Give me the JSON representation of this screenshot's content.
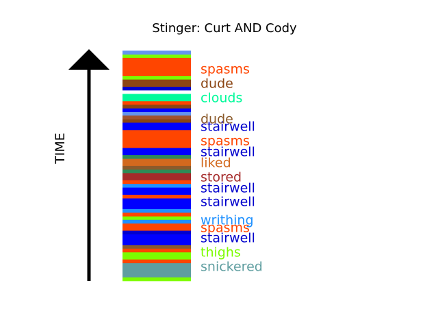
{
  "chart_data": {
    "type": "bar",
    "title": "Stinger: Curt AND Cody",
    "axis_label": "TIME",
    "words": [
      {
        "text": "spasms",
        "color": "#ff4500",
        "y": 0.918
      },
      {
        "text": "dude",
        "color": "#8b4513",
        "y": 0.855
      },
      {
        "text": "clouds",
        "color": "#00fa9a",
        "y": 0.793
      },
      {
        "text": "dude",
        "color": "#8b5a2b",
        "y": 0.699
      },
      {
        "text": "stairwell",
        "color": "#0000cd",
        "y": 0.668
      },
      {
        "text": "spasms",
        "color": "#ff4500",
        "y": 0.605
      },
      {
        "text": "stairwell",
        "color": "#0000cd",
        "y": 0.559
      },
      {
        "text": "liked",
        "color": "#d2691e",
        "y": 0.512
      },
      {
        "text": "stored",
        "color": "#a52a2a",
        "y": 0.449
      },
      {
        "text": "stairwell",
        "color": "#0000cd",
        "y": 0.402
      },
      {
        "text": "stairwell",
        "color": "#0000cd",
        "y": 0.34
      },
      {
        "text": "writhing",
        "color": "#1e90ff",
        "y": 0.262
      },
      {
        "text": "spasms",
        "color": "#ff4500",
        "y": 0.23
      },
      {
        "text": "stairwell",
        "color": "#0000cd",
        "y": 0.184
      },
      {
        "text": "thighs",
        "color": "#7cfc00",
        "y": 0.121
      },
      {
        "text": "snickered",
        "color": "#5f9ea0",
        "y": 0.059
      }
    ],
    "stripes": [
      {
        "start": 0.0,
        "end": 0.016,
        "color": "#7cfc00"
      },
      {
        "start": 0.016,
        "end": 0.078,
        "color": "#5f9ea0"
      },
      {
        "start": 0.078,
        "end": 0.094,
        "color": "#ff4500"
      },
      {
        "start": 0.094,
        "end": 0.125,
        "color": "#7cfc00"
      },
      {
        "start": 0.125,
        "end": 0.141,
        "color": "#ff4500"
      },
      {
        "start": 0.141,
        "end": 0.156,
        "color": "#8b5a2b"
      },
      {
        "start": 0.156,
        "end": 0.203,
        "color": "#0000ff"
      },
      {
        "start": 0.203,
        "end": 0.219,
        "color": "#0000cd"
      },
      {
        "start": 0.219,
        "end": 0.25,
        "color": "#ff4500"
      },
      {
        "start": 0.25,
        "end": 0.266,
        "color": "#1e90ff"
      },
      {
        "start": 0.266,
        "end": 0.281,
        "color": "#7cfc00"
      },
      {
        "start": 0.281,
        "end": 0.297,
        "color": "#ff4500"
      },
      {
        "start": 0.297,
        "end": 0.313,
        "color": "#1e90ff"
      },
      {
        "start": 0.313,
        "end": 0.359,
        "color": "#0000ff"
      },
      {
        "start": 0.359,
        "end": 0.375,
        "color": "#ff4500"
      },
      {
        "start": 0.375,
        "end": 0.406,
        "color": "#0000ff"
      },
      {
        "start": 0.406,
        "end": 0.422,
        "color": "#1e90ff"
      },
      {
        "start": 0.422,
        "end": 0.438,
        "color": "#ff4500"
      },
      {
        "start": 0.438,
        "end": 0.469,
        "color": "#a52a2a"
      },
      {
        "start": 0.469,
        "end": 0.484,
        "color": "#2e8b57"
      },
      {
        "start": 0.484,
        "end": 0.5,
        "color": "#8b5a2b"
      },
      {
        "start": 0.5,
        "end": 0.531,
        "color": "#d2691e"
      },
      {
        "start": 0.531,
        "end": 0.547,
        "color": "#2e8b57"
      },
      {
        "start": 0.547,
        "end": 0.578,
        "color": "#0000ff"
      },
      {
        "start": 0.578,
        "end": 0.656,
        "color": "#ff4500"
      },
      {
        "start": 0.656,
        "end": 0.688,
        "color": "#0000ff"
      },
      {
        "start": 0.688,
        "end": 0.703,
        "color": "#8b4513"
      },
      {
        "start": 0.703,
        "end": 0.719,
        "color": "#a0522d"
      },
      {
        "start": 0.719,
        "end": 0.734,
        "color": "#6495ed"
      },
      {
        "start": 0.734,
        "end": 0.75,
        "color": "#0000ff"
      },
      {
        "start": 0.75,
        "end": 0.766,
        "color": "#8b4513"
      },
      {
        "start": 0.766,
        "end": 0.781,
        "color": "#ff4500"
      },
      {
        "start": 0.781,
        "end": 0.813,
        "color": "#00fa9a"
      },
      {
        "start": 0.813,
        "end": 0.828,
        "color": "#ffffff"
      },
      {
        "start": 0.828,
        "end": 0.844,
        "color": "#0000cd"
      },
      {
        "start": 0.844,
        "end": 0.875,
        "color": "#8b4513"
      },
      {
        "start": 0.875,
        "end": 0.891,
        "color": "#7cfc00"
      },
      {
        "start": 0.891,
        "end": 0.969,
        "color": "#ff4500"
      },
      {
        "start": 0.969,
        "end": 0.984,
        "color": "#7cfc00"
      },
      {
        "start": 0.984,
        "end": 1.0,
        "color": "#6495ed"
      }
    ]
  }
}
